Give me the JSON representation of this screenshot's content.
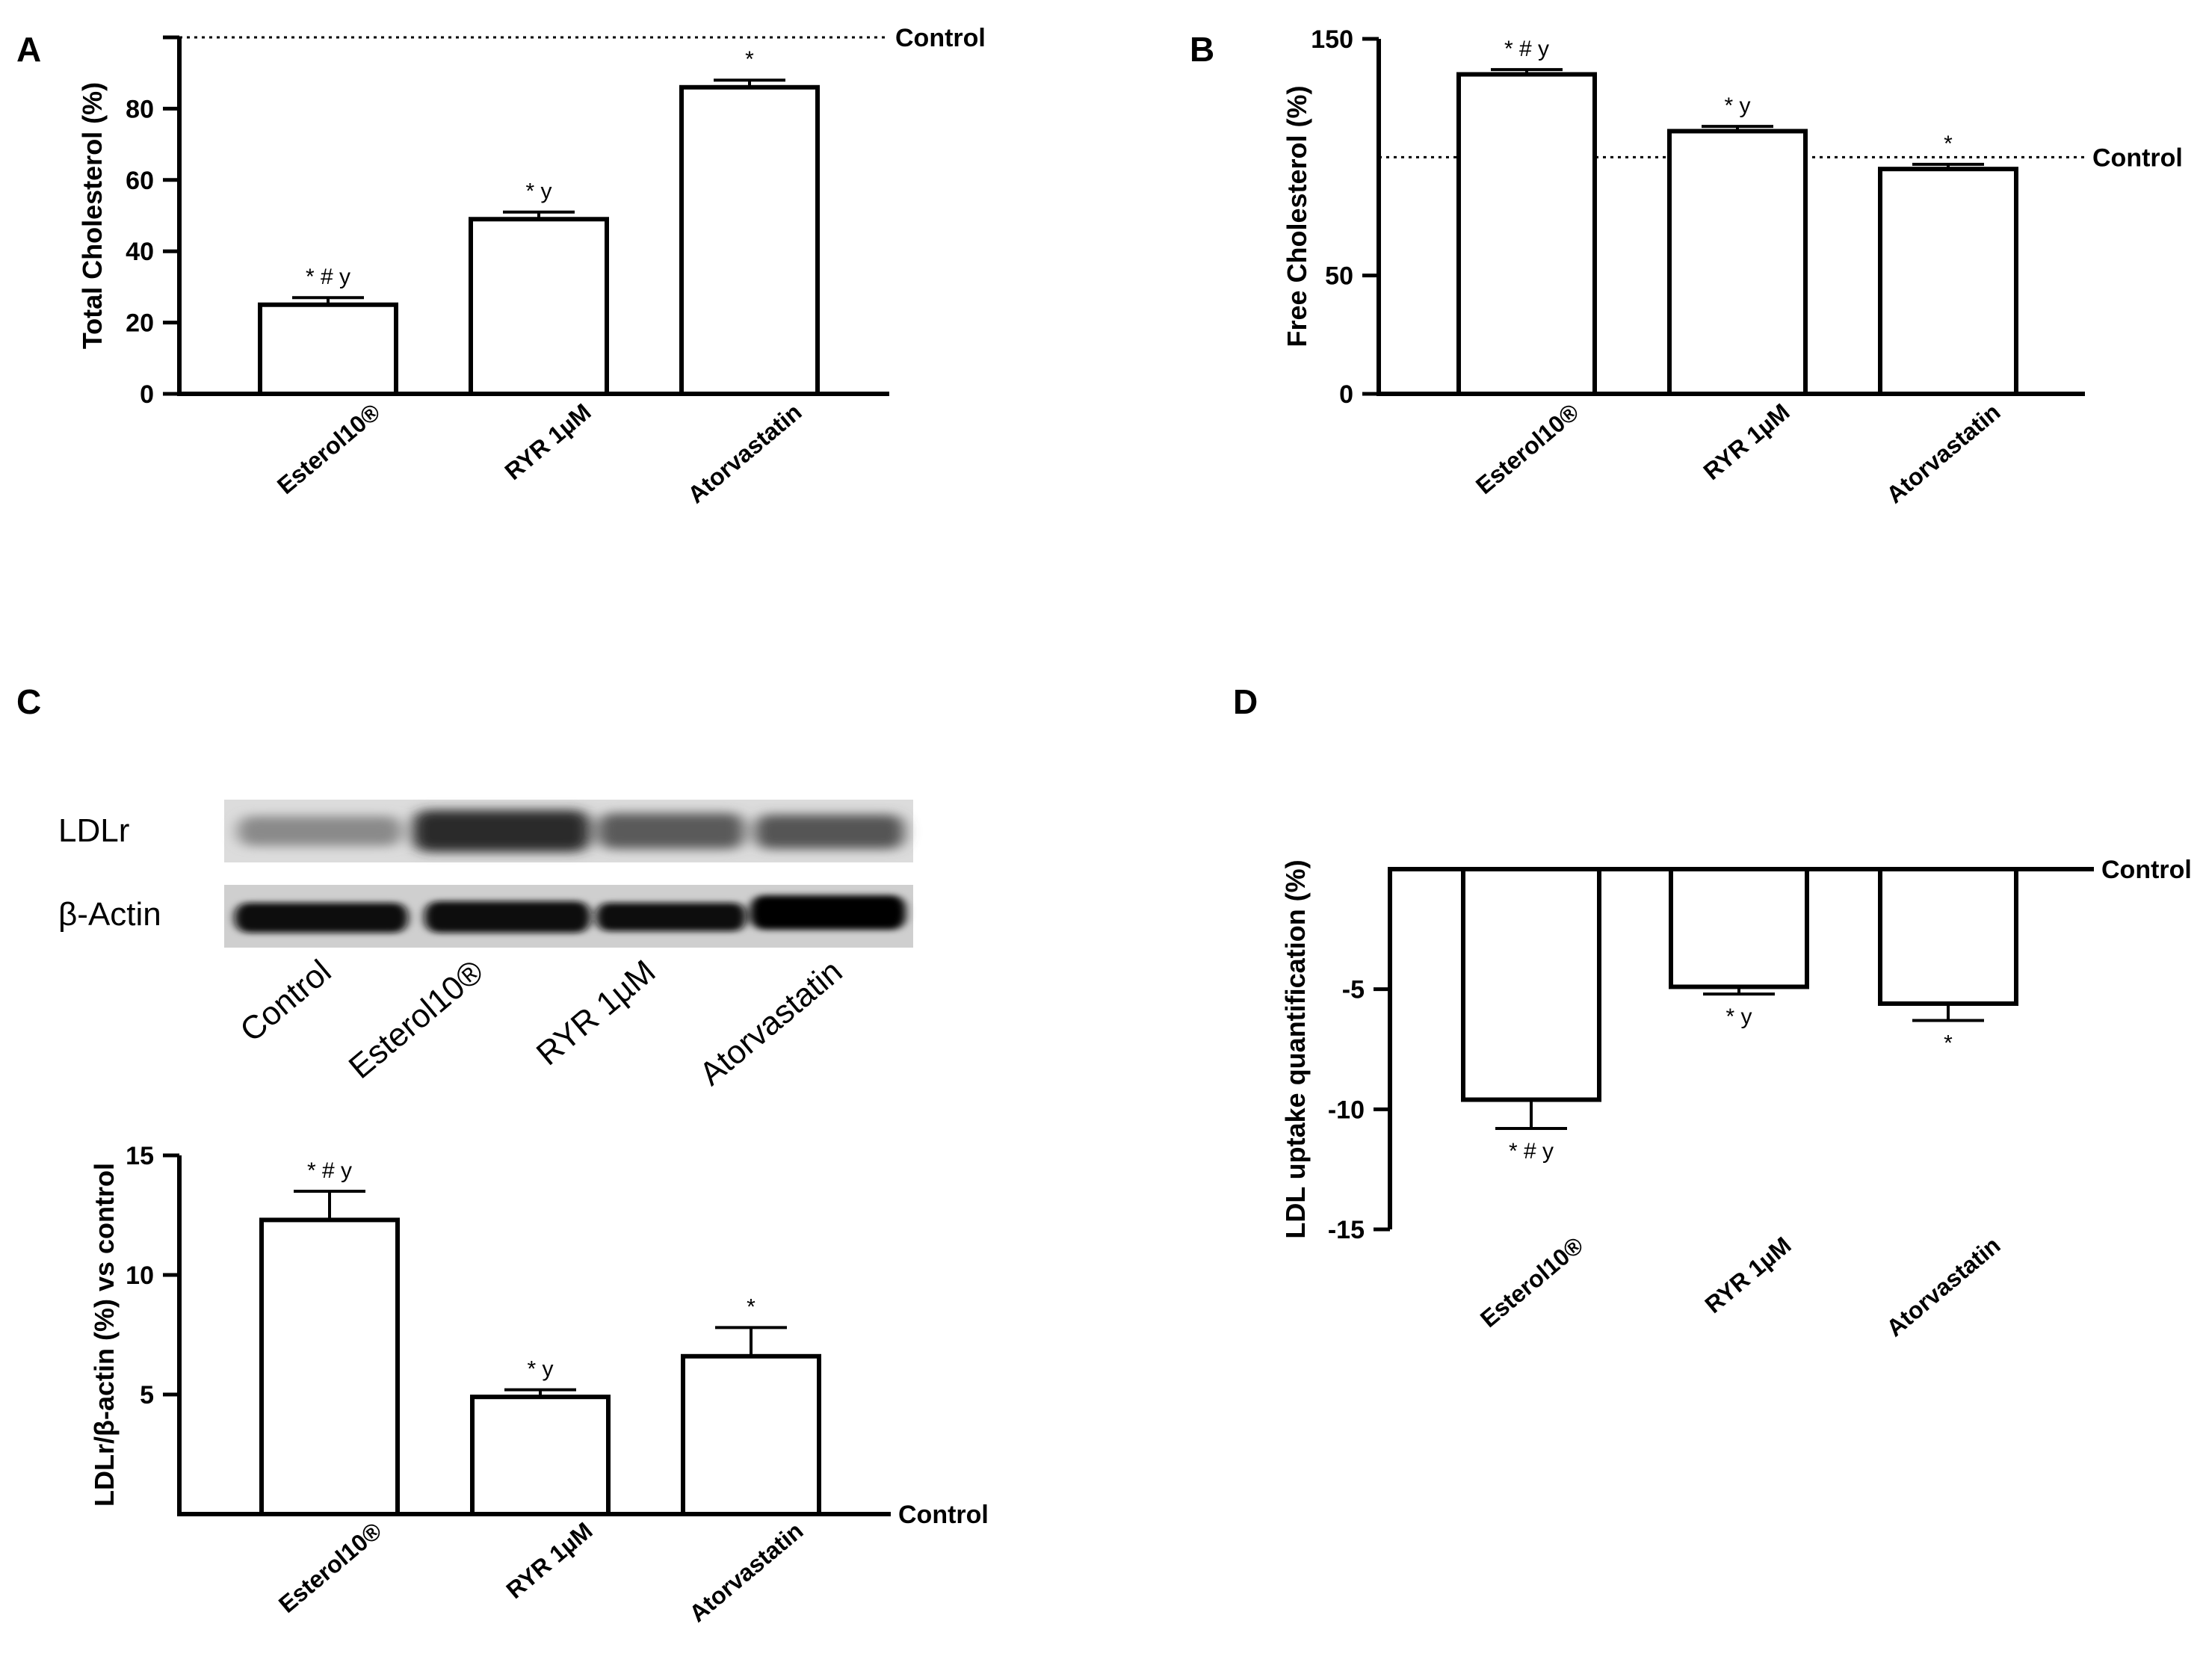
{
  "panels": {
    "a": "A",
    "b": "B",
    "c": "C",
    "d": "D"
  },
  "reference_label": "Control",
  "blot": {
    "rows": [
      "LDLr",
      "β-Actin"
    ],
    "lanes": [
      "Control",
      "Esterol10®",
      "RYR 1µM",
      "Atorvastatin"
    ]
  },
  "chart_data": [
    {
      "id": "A",
      "type": "bar",
      "categories": [
        "Esterol10®",
        "RYR 1µM",
        "Atorvastatin"
      ],
      "values": [
        25,
        49,
        86
      ],
      "errors": [
        2,
        2,
        2
      ],
      "annotations": [
        "* # y",
        "* y",
        "*"
      ],
      "ylabel": "Total Cholesterol (%)",
      "ylim": [
        0,
        100
      ],
      "yticks": [
        0,
        20,
        40,
        60,
        80
      ],
      "reference_value": 100,
      "reference_label": "Control",
      "reference_style": "dotted"
    },
    {
      "id": "B",
      "type": "bar",
      "categories": [
        "Esterol10®",
        "RYR 1µM",
        "Atorvastatin"
      ],
      "values": [
        135,
        111,
        95
      ],
      "errors": [
        2,
        2,
        2
      ],
      "annotations": [
        "* # y",
        "* y",
        "*"
      ],
      "ylabel": "Free Cholesterol (%)",
      "ylim": [
        0,
        150
      ],
      "yticks": [
        0,
        50,
        150
      ],
      "reference_value": 100,
      "reference_label": "Control",
      "reference_style": "dotted"
    },
    {
      "id": "C",
      "type": "bar",
      "categories": [
        "Esterol10®",
        "RYR 1µM",
        "Atorvastatin"
      ],
      "values": [
        12.3,
        4.9,
        6.6
      ],
      "errors": [
        1.2,
        0.3,
        1.2
      ],
      "annotations": [
        "* # y",
        "* y",
        "*"
      ],
      "ylabel": "LDLr/β-actin (%) vs control",
      "ylim": [
        0,
        15
      ],
      "yticks": [
        5,
        10,
        15
      ],
      "reference_value": 0,
      "reference_label": "Control",
      "reference_style": "solid"
    },
    {
      "id": "D",
      "type": "bar",
      "categories": [
        "Esterol10®",
        "RYR 1µM",
        "Atorvastatin"
      ],
      "values": [
        -9.6,
        -4.9,
        -5.6
      ],
      "errors": [
        1.2,
        0.3,
        0.7
      ],
      "annotations": [
        "* # y",
        "* y",
        "*"
      ],
      "ylabel": "LDL uptake quantification  (%)",
      "ylim": [
        -15,
        0
      ],
      "yticks": [
        -5,
        -10,
        -15
      ],
      "reference_value": 0,
      "reference_label": "Control",
      "reference_style": "solid"
    }
  ]
}
